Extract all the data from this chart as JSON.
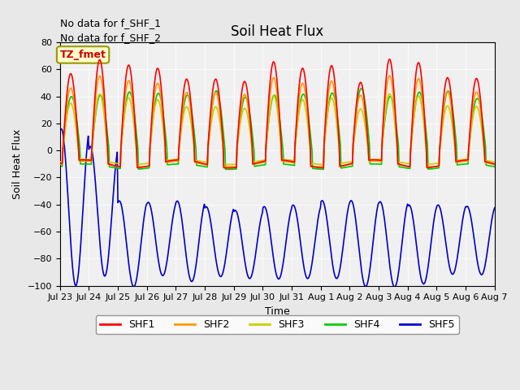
{
  "title": "Soil Heat Flux",
  "ylabel": "Soil Heat Flux",
  "xlabel": "Time",
  "no_data_text": [
    "No data for f_SHF_1",
    "No data for f_SHF_2"
  ],
  "tz_label": "TZ_fmet",
  "ylim": [
    -100,
    80
  ],
  "yticks": [
    -100,
    -80,
    -60,
    -40,
    -20,
    0,
    20,
    40,
    60,
    80
  ],
  "x_tick_labels": [
    "Jul 23",
    "Jul 24",
    "Jul 25",
    "Jul 26",
    "Jul 27",
    "Jul 28",
    "Jul 29",
    "Jul 30",
    "Jul 31",
    "Aug 1",
    "Aug 2",
    "Aug 3",
    "Aug 4",
    "Aug 5",
    "Aug 6",
    "Aug 7"
  ],
  "colors": {
    "SHF1": "#ff0000",
    "SHF2": "#ff9900",
    "SHF3": "#cccc00",
    "SHF4": "#00cc00",
    "SHF5": "#0000cc"
  },
  "bg_color": "#e8e8e8",
  "plot_bg": "#f0f0f0",
  "n_days": 15,
  "points_per_day": 48
}
